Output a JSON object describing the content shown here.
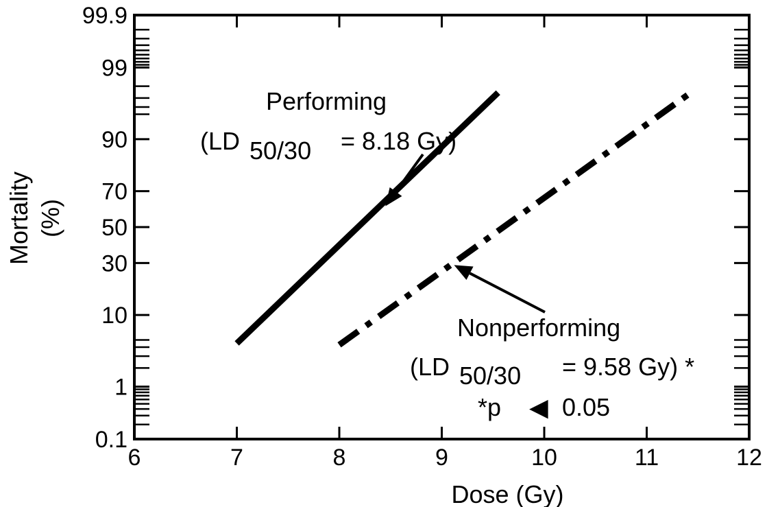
{
  "chart_data": {
    "type": "line",
    "xlabel": "Dose (Gy)",
    "ylabel": [
      "Mortality",
      "(%)"
    ],
    "xlim": [
      6,
      12
    ],
    "ylim": [
      0.1,
      99.9
    ],
    "yscale": "probit",
    "grid": false,
    "x_ticks": [
      {
        "value": 6,
        "label": "6"
      },
      {
        "value": 7,
        "label": "7"
      },
      {
        "value": 8,
        "label": "8"
      },
      {
        "value": 9,
        "label": "9"
      },
      {
        "value": 10,
        "label": "10"
      },
      {
        "value": 11,
        "label": "11"
      },
      {
        "value": 12,
        "label": "12"
      }
    ],
    "y_ticks": [
      {
        "value": 0.1,
        "label": "0.1"
      },
      {
        "value": 1,
        "label": "1"
      },
      {
        "value": 10,
        "label": "10"
      },
      {
        "value": 30,
        "label": "30"
      },
      {
        "value": 50,
        "label": "50"
      },
      {
        "value": 70,
        "label": "70"
      },
      {
        "value": 90,
        "label": "90"
      },
      {
        "value": 99,
        "label": "99"
      },
      {
        "value": 99.9,
        "label": "99.9"
      }
    ],
    "series": [
      {
        "name": "Performing",
        "style": "solid",
        "x": [
          7.0,
          9.55
        ],
        "y": [
          4.5,
          97.5
        ]
      },
      {
        "name": "Nonperforming",
        "style": "dash-dot",
        "x": [
          8.0,
          11.4
        ],
        "y": [
          4.3,
          97.3
        ]
      }
    ],
    "annotations": [
      {
        "text": "Performing",
        "sub_open": "(LD",
        "sub": "50/30",
        "sub_close": "=  8.18  Gy)",
        "arrow_to_series": "Performing",
        "arrow_target": {
          "x": 8.45,
          "y": 62
        }
      },
      {
        "text": "Nonperforming",
        "sub_open": "(LD",
        "sub": "50/30",
        "sub_close": "=  9.58  Gy) *",
        "arrow_to_series": "Nonperforming",
        "arrow_target": {
          "x": 9.12,
          "y": 29
        }
      }
    ],
    "footnote": {
      "prefix": "*p",
      "symbol": "◀",
      "suffix": "0.05"
    }
  }
}
